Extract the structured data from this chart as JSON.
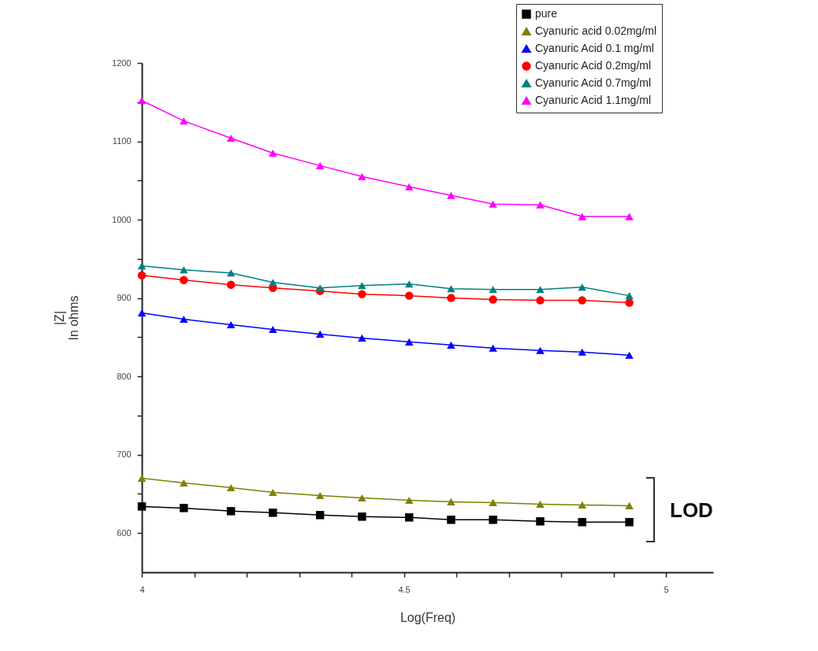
{
  "chart_data": {
    "type": "line",
    "xlabel": "Log(Freq)",
    "ylabel": "|Z|\nIn ohms",
    "x": [
      4.0,
      4.08,
      4.17,
      4.25,
      4.34,
      4.42,
      4.51,
      4.59,
      4.67,
      4.76,
      4.84,
      4.93
    ],
    "series": [
      {
        "name": "pure",
        "color": "#000000",
        "marker": "square",
        "values": [
          634,
          632,
          628,
          626,
          623,
          621,
          620,
          617,
          617,
          615,
          614,
          614
        ]
      },
      {
        "name": "Cyanuric acid 0.02mg/ml",
        "color": "#808000",
        "marker": "triangle",
        "values": [
          670,
          664,
          658,
          652,
          648,
          645,
          642,
          640,
          639,
          637,
          636,
          635
        ]
      },
      {
        "name": "Cyanuric Acid 0.1 mg/ml",
        "color": "#0000ff",
        "marker": "triangle",
        "values": [
          881,
          873,
          866,
          860,
          854,
          849,
          844,
          840,
          836,
          833,
          831,
          827
        ]
      },
      {
        "name": "Cyanuric Acid 0.2mg/ml",
        "color": "#ff0000",
        "marker": "circle",
        "values": [
          929,
          923,
          917,
          913,
          909,
          905,
          903,
          900,
          898,
          897,
          897,
          894
        ]
      },
      {
        "name": "Cyanuric Acid 0.7mg/ml",
        "color": "#008080",
        "marker": "triangle",
        "values": [
          941,
          936,
          932,
          920,
          913,
          916,
          918,
          912,
          911,
          911,
          914,
          903
        ]
      },
      {
        "name": "Cyanuric Acid 1.1mg/ml",
        "color": "#ff00ff",
        "marker": "triangle",
        "values": [
          1152,
          1126,
          1104,
          1085,
          1069,
          1055,
          1042,
          1031,
          1020,
          1019,
          1004,
          1004
        ]
      }
    ],
    "xlim": [
      4,
      5.09
    ],
    "xticks": [
      4,
      {
        "value": 4.1,
        "label": null
      },
      {
        "value": 4.2,
        "label": null
      },
      {
        "value": 4.3,
        "label": null
      },
      {
        "value": 4.4,
        "label": null
      },
      4.5,
      {
        "value": 4.6,
        "label": null
      },
      {
        "value": 4.7,
        "label": null
      },
      {
        "value": 4.8,
        "label": null
      },
      {
        "value": 4.9,
        "label": null
      },
      5
    ],
    "ylim": [
      550,
      1200
    ],
    "yticks": [
      600,
      {
        "value": 650,
        "label": null
      },
      700,
      {
        "value": 750,
        "label": null
      },
      800,
      {
        "value": 850,
        "label": null
      },
      900,
      {
        "value": 950,
        "label": null
      },
      1000,
      {
        "value": 1050,
        "label": null
      },
      1100,
      {
        "value": 1150,
        "label": null
      },
      1200
    ],
    "annotations": [
      "LOD"
    ],
    "grid": false,
    "legend": "top right",
    "line_style": "solid"
  }
}
